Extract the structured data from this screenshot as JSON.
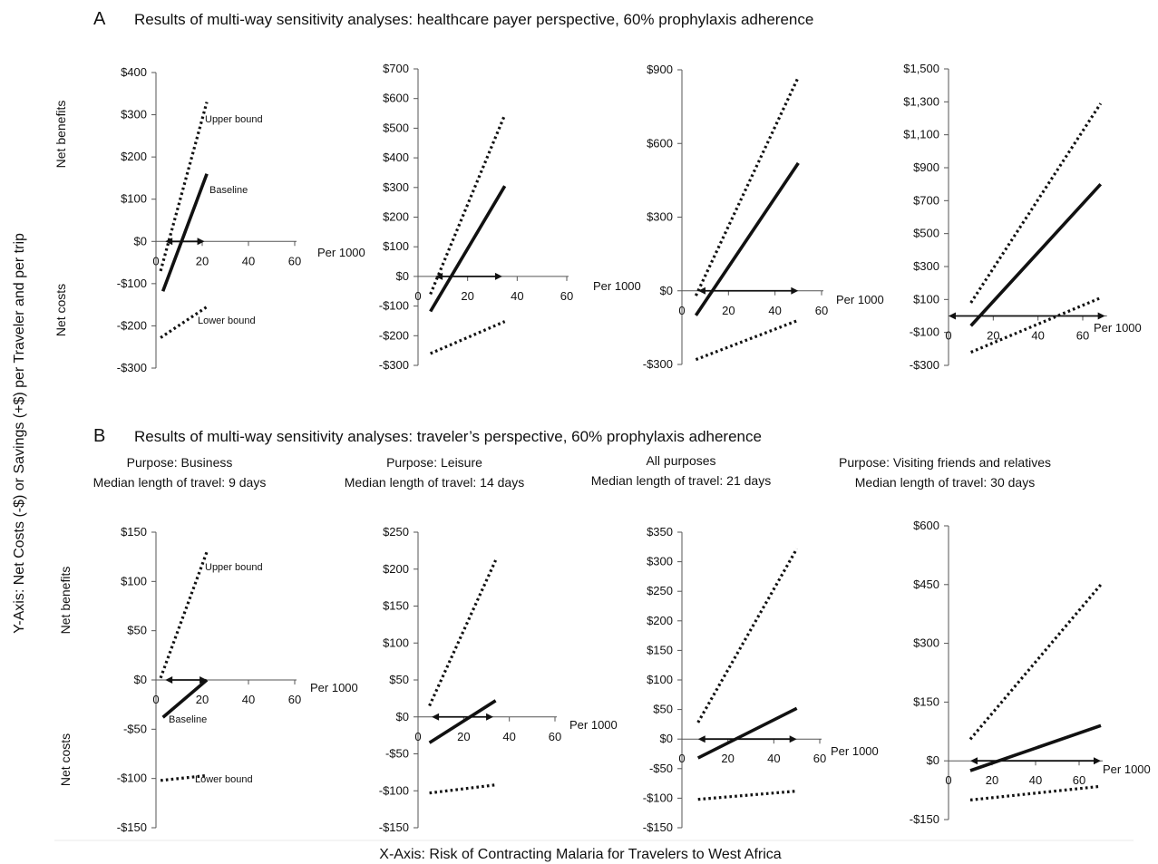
{
  "figure": {
    "y_axis_title": "Y-Axis:  Net Costs (-$) or Savings (+$) per Traveler and per trip",
    "x_axis_title": "X-Axis: Risk of Contracting Malaria for Travelers to West Africa",
    "side_labels": {
      "benefits": "Net benefits",
      "costs": "Net costs"
    }
  },
  "panels": [
    {
      "letter": "A",
      "title": "Results of multi-way sensitivity analyses: healthcare payer perspective, 60% prophylaxis adherence"
    },
    {
      "letter": "B",
      "title": "Results of multi-way sensitivity analyses: traveler’s perspective, 60% prophylaxis adherence"
    }
  ],
  "column_headers": [
    {
      "line1": "Purpose: Business",
      "line2": "Median length of travel: 9 days"
    },
    {
      "line1": "Purpose: Leisure",
      "line2": "Median length of travel: 14 days"
    },
    {
      "line1": "All purposes",
      "line2": "Median length of travel: 21 days"
    },
    {
      "line1": "Purpose: Visiting friends and relatives",
      "line2": "Median length of travel: 30 days"
    }
  ],
  "annotations": {
    "upper": "Upper bound",
    "baseline": "Baseline",
    "lower": "Lower bound"
  },
  "colors": {
    "ink": "#111111",
    "axis": "#444444"
  },
  "chart_data": [
    {
      "type": "line",
      "panel": "A",
      "xlabel": "Per 1000",
      "xlim": [
        0,
        60
      ],
      "xticks": [
        0,
        20,
        40,
        60
      ],
      "ylim": [
        -300,
        400
      ],
      "yticks": [
        -300,
        -200,
        -100,
        0,
        100,
        200,
        300,
        400
      ],
      "yticklabels": [
        "-$300",
        "-$200",
        "-$100",
        "$0",
        "$100",
        "$200",
        "$300",
        "$400"
      ],
      "arrow_range": [
        4,
        21
      ],
      "series": [
        {
          "name": "Upper bound",
          "style": "dotted",
          "x": [
            2,
            22
          ],
          "y": [
            -70,
            330
          ]
        },
        {
          "name": "Baseline",
          "style": "solid",
          "x": [
            3,
            22
          ],
          "y": [
            -118,
            160
          ]
        },
        {
          "name": "Lower bound",
          "style": "dotted",
          "x": [
            2,
            22
          ],
          "y": [
            -228,
            -155
          ]
        }
      ]
    },
    {
      "type": "line",
      "panel": "A",
      "xlabel": "Per 1000",
      "xlim": [
        0,
        60
      ],
      "xticks": [
        0,
        20,
        40,
        60
      ],
      "ylim": [
        -300,
        700
      ],
      "yticks": [
        -300,
        -200,
        -100,
        0,
        100,
        200,
        300,
        400,
        500,
        600,
        700
      ],
      "yticklabels": [
        "-$300",
        "-$200",
        "-$100",
        "$0",
        "$100",
        "$200",
        "$300",
        "$400",
        "$500",
        "$600",
        "$700"
      ],
      "arrow_range": [
        7,
        34
      ],
      "series": [
        {
          "series_key": "upper",
          "style": "dotted",
          "x": [
            5,
            35
          ],
          "y": [
            -60,
            545
          ]
        },
        {
          "series_key": "baseline",
          "style": "solid",
          "x": [
            5,
            35
          ],
          "y": [
            -118,
            305
          ]
        },
        {
          "series_key": "lower",
          "style": "dotted",
          "x": [
            5,
            35
          ],
          "y": [
            -260,
            -152
          ]
        }
      ]
    },
    {
      "type": "line",
      "panel": "A",
      "xlabel": "Per 1000",
      "xlim": [
        0,
        60
      ],
      "xticks": [
        0,
        20,
        40,
        60
      ],
      "ylim": [
        -300,
        900
      ],
      "yticks": [
        -300,
        0,
        300,
        600,
        900
      ],
      "yticklabels": [
        "-$300",
        "$0",
        "$300",
        "$600",
        "$900"
      ],
      "arrow_range": [
        7,
        50
      ],
      "series": [
        {
          "series_key": "upper",
          "style": "dotted",
          "x": [
            6,
            50
          ],
          "y": [
            -20,
            870
          ]
        },
        {
          "series_key": "baseline",
          "style": "solid",
          "x": [
            6,
            50
          ],
          "y": [
            -100,
            520
          ]
        },
        {
          "series_key": "lower",
          "style": "dotted",
          "x": [
            6,
            50
          ],
          "y": [
            -280,
            -120
          ]
        }
      ]
    },
    {
      "type": "line",
      "panel": "A",
      "xlabel": "Per 1000",
      "xlim": [
        0,
        70
      ],
      "xticks": [
        0,
        20,
        40,
        60
      ],
      "ylim": [
        -300,
        1500
      ],
      "yticks": [
        -300,
        -100,
        100,
        300,
        500,
        700,
        900,
        1100,
        1300,
        1500
      ],
      "yticklabels": [
        "-$300",
        "-$100",
        "$100",
        "$300",
        "$500",
        "$700",
        "$900",
        "$1,100",
        "$1,300",
        "$1,500"
      ],
      "arrow_range": [
        0,
        70
      ],
      "series": [
        {
          "series_key": "upper",
          "style": "dotted",
          "x": [
            10,
            68
          ],
          "y": [
            80,
            1290
          ]
        },
        {
          "series_key": "baseline",
          "style": "solid",
          "x": [
            10,
            68
          ],
          "y": [
            -60,
            800
          ]
        },
        {
          "series_key": "lower",
          "style": "dotted",
          "x": [
            10,
            68
          ],
          "y": [
            -220,
            110
          ]
        }
      ]
    },
    {
      "type": "line",
      "panel": "B",
      "xlabel": "Per 1000",
      "xlim": [
        0,
        60
      ],
      "xticks": [
        0,
        20,
        40,
        60
      ],
      "ylim": [
        -150,
        150
      ],
      "yticks": [
        -150,
        -100,
        -50,
        0,
        50,
        100,
        150
      ],
      "yticklabels": [
        "-$150",
        "-$100",
        "-$50",
        "$0",
        "$50",
        "$100",
        "$150"
      ],
      "arrow_range": [
        4,
        22
      ],
      "series": [
        {
          "name": "Upper bound",
          "style": "dotted",
          "x": [
            2,
            22
          ],
          "y": [
            2,
            130
          ]
        },
        {
          "name": "Baseline",
          "style": "solid",
          "x": [
            3,
            22
          ],
          "y": [
            -38,
            0
          ]
        },
        {
          "name": "Lower bound",
          "style": "dotted",
          "x": [
            2,
            22
          ],
          "y": [
            -102,
            -97
          ]
        }
      ]
    },
    {
      "type": "line",
      "panel": "B",
      "xlabel": "Per 1000",
      "xlim": [
        0,
        60
      ],
      "xticks": [
        0,
        20,
        40,
        60
      ],
      "ylim": [
        -150,
        250
      ],
      "yticks": [
        -150,
        -100,
        -50,
        0,
        50,
        100,
        150,
        200,
        250
      ],
      "yticklabels": [
        "-$150",
        "-$100",
        "-$50",
        "$0",
        "$50",
        "$100",
        "$150",
        "$200",
        "$250"
      ],
      "arrow_range": [
        6,
        33
      ],
      "series": [
        {
          "series_key": "upper",
          "style": "dotted",
          "x": [
            5,
            34
          ],
          "y": [
            15,
            212
          ]
        },
        {
          "series_key": "baseline",
          "style": "solid",
          "x": [
            5,
            34
          ],
          "y": [
            -35,
            22
          ]
        },
        {
          "series_key": "lower",
          "style": "dotted",
          "x": [
            5,
            34
          ],
          "y": [
            -103,
            -92
          ]
        }
      ]
    },
    {
      "type": "line",
      "panel": "B",
      "xlabel": "Per 1000",
      "xlim": [
        0,
        60
      ],
      "xticks": [
        0,
        20,
        40,
        60
      ],
      "ylim": [
        -150,
        350
      ],
      "yticks": [
        -150,
        -100,
        -50,
        0,
        50,
        100,
        150,
        200,
        250,
        300,
        350
      ],
      "yticklabels": [
        "-$150",
        "-$100",
        "-$50",
        "$0",
        "$50",
        "$100",
        "$150",
        "$200",
        "$250",
        "$300",
        "$350"
      ],
      "arrow_range": [
        7,
        50
      ],
      "series": [
        {
          "series_key": "upper",
          "style": "dotted",
          "x": [
            7,
            50
          ],
          "y": [
            28,
            322
          ]
        },
        {
          "series_key": "baseline",
          "style": "solid",
          "x": [
            7,
            50
          ],
          "y": [
            -32,
            52
          ]
        },
        {
          "series_key": "lower",
          "style": "dotted",
          "x": [
            7,
            50
          ],
          "y": [
            -102,
            -88
          ]
        }
      ]
    },
    {
      "type": "line",
      "panel": "B",
      "xlabel": "Per 1000",
      "xlim": [
        0,
        70
      ],
      "xticks": [
        0,
        20,
        40,
        60
      ],
      "ylim": [
        -150,
        600
      ],
      "yticks": [
        -150,
        0,
        150,
        300,
        450,
        600
      ],
      "yticklabels": [
        "-$150",
        "$0",
        "$150",
        "$300",
        "$450",
        "$600"
      ],
      "arrow_range": [
        10,
        70
      ],
      "series": [
        {
          "series_key": "upper",
          "style": "dotted",
          "x": [
            10,
            70
          ],
          "y": [
            55,
            450
          ]
        },
        {
          "series_key": "baseline",
          "style": "solid",
          "x": [
            10,
            70
          ],
          "y": [
            -25,
            90
          ]
        },
        {
          "series_key": "lower",
          "style": "dotted",
          "x": [
            10,
            70
          ],
          "y": [
            -100,
            -65
          ]
        }
      ]
    }
  ]
}
